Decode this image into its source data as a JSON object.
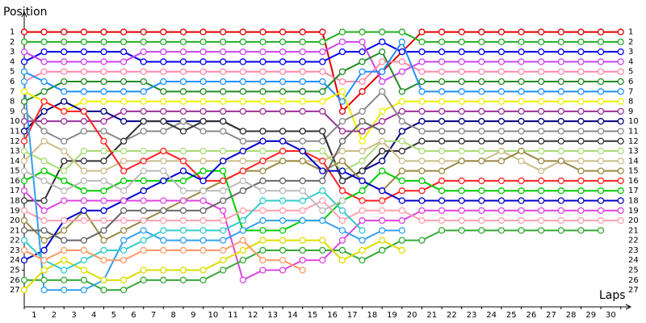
{
  "chart_data": {
    "type": "lapchart",
    "y_label": "Position",
    "x_label": "Laps",
    "x": [
      0,
      1,
      2,
      3,
      4,
      5,
      6,
      7,
      8,
      9,
      10,
      11,
      12,
      13,
      14,
      15,
      16,
      17,
      18,
      19,
      20,
      21,
      22,
      23,
      24,
      25,
      26,
      27,
      28,
      29,
      30
    ],
    "xlim": [
      0,
      30.5
    ],
    "ylim": [
      28.7,
      -1
    ],
    "yticks": [
      1,
      2,
      3,
      4,
      5,
      6,
      7,
      8,
      9,
      10,
      11,
      12,
      13,
      14,
      15,
      16,
      17,
      18,
      19,
      20,
      21,
      22,
      23,
      24,
      25,
      26,
      27
    ],
    "xticks": [
      {
        "value": 0.5,
        "label": "1"
      },
      {
        "value": 1.5,
        "label": "2"
      },
      {
        "value": 2.5,
        "label": "3"
      },
      {
        "value": 3.5,
        "label": "4"
      },
      {
        "value": 4.5,
        "label": "5"
      },
      {
        "value": 5.5,
        "label": "6"
      },
      {
        "value": 6.5,
        "label": "7"
      },
      {
        "value": 7.5,
        "label": "8"
      },
      {
        "value": 8.5,
        "label": "9"
      },
      {
        "value": 9.5,
        "label": "10"
      },
      {
        "value": 10.5,
        "label": "11"
      },
      {
        "value": 11.5,
        "label": "12"
      },
      {
        "value": 12.5,
        "label": "13"
      },
      {
        "value": 13.5,
        "label": "14"
      },
      {
        "value": 14.5,
        "label": "15"
      },
      {
        "value": 15.5,
        "label": "16"
      },
      {
        "value": 16.5,
        "label": "17"
      },
      {
        "value": 17.5,
        "label": "18"
      },
      {
        "value": 18.5,
        "label": "19"
      },
      {
        "value": 19.5,
        "label": "20"
      },
      {
        "value": 20.5,
        "label": "21"
      },
      {
        "value": 21.5,
        "label": "22"
      },
      {
        "value": 22.5,
        "label": "23"
      },
      {
        "value": 23.5,
        "label": "24"
      },
      {
        "value": 24.5,
        "label": "25"
      },
      {
        "value": 25.5,
        "label": "26"
      },
      {
        "value": 26.5,
        "label": "27"
      },
      {
        "value": 27.5,
        "label": "28"
      },
      {
        "value": 28.5,
        "label": "29"
      },
      {
        "value": 29.5,
        "label": "30"
      }
    ],
    "series": [
      {
        "color": "#e00000",
        "values": [
          1,
          1,
          1,
          1,
          1,
          1,
          1,
          1,
          1,
          1,
          1,
          1,
          1,
          1,
          1,
          1,
          9,
          7,
          5,
          3,
          1,
          1,
          1,
          1,
          1,
          1,
          1,
          1,
          1,
          1,
          1
        ]
      },
      {
        "color": "#22b022",
        "values": [
          2,
          2,
          2,
          2,
          2,
          2,
          2,
          2,
          2,
          2,
          2,
          2,
          2,
          2,
          2,
          2,
          1,
          1,
          1,
          1,
          2,
          2,
          2,
          2,
          2,
          2,
          2,
          2,
          2,
          2,
          2
        ]
      },
      {
        "color": "#0000ee",
        "values": [
          4,
          3,
          3,
          3,
          3,
          3,
          4,
          4,
          4,
          4,
          4,
          4,
          4,
          4,
          4,
          4,
          3,
          3,
          2,
          3,
          3,
          3,
          3,
          3,
          3,
          3,
          3,
          3,
          3,
          3,
          3
        ]
      },
      {
        "color": "#cc44ee",
        "values": [
          3,
          4,
          4,
          4,
          4,
          4,
          3,
          3,
          3,
          3,
          3,
          3,
          3,
          3,
          3,
          3,
          2,
          2,
          6,
          5,
          4,
          4,
          4,
          4,
          4,
          4,
          4,
          4,
          4,
          4,
          4
        ]
      },
      {
        "color": "#ff88aa",
        "values": [
          6,
          5,
          5,
          5,
          5,
          5,
          5,
          5,
          5,
          5,
          5,
          5,
          5,
          5,
          5,
          5,
          6,
          6,
          4,
          4,
          5,
          5,
          5,
          5,
          5,
          5,
          5,
          5,
          5,
          5,
          5
        ]
      },
      {
        "color": "#228b22",
        "values": [
          8,
          7,
          6,
          6,
          6,
          6,
          6,
          7,
          7,
          7,
          7,
          7,
          7,
          7,
          7,
          7,
          5,
          4,
          3,
          7,
          6,
          6,
          6,
          6,
          6,
          6,
          6,
          6,
          6,
          6,
          6
        ]
      },
      {
        "color": "#1e90ff",
        "values": [
          5,
          6,
          7,
          7,
          7,
          7,
          7,
          6,
          6,
          6,
          6,
          6,
          6,
          6,
          6,
          6,
          8,
          5,
          5,
          2,
          7,
          7,
          7,
          7,
          7,
          7,
          7,
          7,
          7,
          7,
          7
        ]
      },
      {
        "color": "#eeee00",
        "values": [
          7,
          8,
          9,
          8,
          8,
          8,
          8,
          8,
          8,
          8,
          8,
          8,
          8,
          8,
          8,
          8,
          7,
          12,
          9,
          8,
          8,
          8,
          8,
          8,
          8,
          8,
          8,
          8,
          8,
          8,
          8
        ]
      },
      {
        "color": "#993399",
        "values": [
          10,
          10,
          10,
          10,
          10,
          9,
          9,
          9,
          9,
          9,
          9,
          9,
          9,
          9,
          9,
          9,
          11,
          11,
          10,
          9,
          9,
          9,
          9,
          9,
          9,
          9,
          9,
          9,
          9,
          9,
          9
        ]
      },
      {
        "color": "#000080",
        "values": [
          11,
          9,
          8,
          9,
          9,
          10,
          10,
          10,
          10,
          10,
          10,
          11,
          11,
          11,
          11,
          11,
          16,
          15,
          14,
          11,
          10,
          10,
          10,
          10,
          10,
          10,
          10,
          10,
          10,
          10,
          10
        ]
      },
      {
        "color": "#888888",
        "values": [
          9,
          11,
          12,
          11,
          11,
          12,
          11,
          11,
          10,
          11,
          11,
          12,
          12,
          12,
          12,
          12,
          10,
          9,
          7,
          10,
          11,
          11,
          11,
          11,
          11,
          11,
          11,
          11,
          11,
          11,
          11
        ]
      },
      {
        "color": "#333333",
        "values": [
          18,
          18,
          14,
          14,
          14,
          12,
          10,
          10,
          11,
          10,
          10,
          11,
          11,
          11,
          11,
          11,
          16,
          15,
          13,
          13,
          12,
          12,
          12,
          12,
          12,
          12,
          12,
          12,
          12,
          12,
          12
        ]
      },
      {
        "color": "#aadd77",
        "values": [
          13,
          14,
          15,
          13,
          13,
          13,
          13,
          13,
          13,
          13,
          13,
          13,
          13,
          13,
          13,
          13,
          15,
          14,
          12,
          12,
          13,
          13,
          13,
          13,
          13,
          13,
          13,
          13,
          13,
          13,
          13
        ]
      },
      {
        "color": "#ccbb88",
        "values": [
          14,
          12,
          13,
          15,
          15,
          14,
          14,
          14,
          14,
          14,
          14,
          14,
          14,
          14,
          14,
          14,
          13,
          13,
          12,
          14,
          14,
          14,
          14,
          14,
          13,
          14,
          15,
          14,
          14,
          14,
          14
        ]
      },
      {
        "color": "#998844",
        "values": [
          20,
          22,
          21,
          19,
          22,
          21,
          20,
          19,
          18,
          17,
          16,
          15,
          15,
          14,
          14,
          15,
          14,
          16,
          17,
          15,
          15,
          15,
          14,
          14,
          14,
          13,
          14,
          14,
          15,
          15,
          15
        ]
      },
      {
        "color": "#ff2020",
        "values": [
          12,
          8,
          9,
          9,
          12,
          15,
          14,
          13,
          14,
          16,
          16,
          15,
          14,
          13,
          13,
          14,
          17,
          18,
          18,
          17,
          17,
          16,
          16,
          16,
          16,
          16,
          16,
          16,
          16,
          16,
          16
        ]
      },
      {
        "color": "#00cc00",
        "values": [
          16,
          15,
          16,
          17,
          17,
          16,
          16,
          16,
          16,
          15,
          15,
          21,
          21,
          21,
          20,
          20,
          18,
          17,
          15,
          16,
          16,
          17,
          17,
          17,
          17,
          17,
          17,
          17,
          17,
          17,
          17
        ]
      },
      {
        "color": "#0000cc",
        "values": [
          24,
          23,
          20,
          19,
          19,
          18,
          17,
          16,
          15,
          16,
          14,
          13,
          12,
          12,
          13,
          15,
          15,
          16,
          17,
          18,
          18,
          18,
          18,
          18,
          18,
          18,
          18,
          18,
          18,
          18,
          18
        ]
      },
      {
        "color": "#dd44dd",
        "values": [
          17,
          19,
          18,
          18,
          18,
          18,
          18,
          18,
          18,
          18,
          19,
          26,
          25,
          25,
          24,
          24,
          22,
          20,
          20,
          20,
          19,
          19,
          19,
          19,
          19,
          19,
          19,
          19,
          19,
          19,
          19
        ]
      },
      {
        "color": "#ffa0b0",
        "values": [
          19,
          20,
          20,
          20,
          20,
          20,
          20,
          20,
          20,
          20,
          20,
          19,
          19,
          19,
          19,
          18,
          20,
          19,
          19,
          19,
          20,
          20,
          20,
          20,
          20,
          20,
          20,
          20,
          20,
          20,
          20
        ]
      },
      {
        "color": "#33aa33",
        "values": [
          26,
          26,
          26,
          26,
          27,
          27,
          26,
          26,
          26,
          26,
          25,
          24,
          23,
          23,
          23,
          23,
          23,
          24,
          23,
          22,
          22,
          21,
          21,
          21,
          21,
          21,
          21,
          21,
          21,
          21,
          null
        ]
      },
      {
        "color": "#33a0ee",
        "values": [
          6,
          27,
          27,
          27,
          26,
          22,
          21,
          22,
          22,
          22,
          22,
          21,
          20,
          20,
          20,
          20,
          21,
          22,
          21,
          21,
          null,
          null,
          null,
          null,
          null,
          null,
          null,
          null,
          null,
          null,
          null
        ]
      },
      {
        "color": "#dddd00",
        "values": [
          27,
          25,
          24,
          25,
          26,
          26,
          25,
          25,
          25,
          25,
          24,
          23,
          22,
          22,
          22,
          22,
          24,
          23,
          22,
          23,
          null,
          null,
          null,
          null,
          null,
          null,
          null,
          null,
          null,
          null,
          null
        ]
      },
      {
        "color": "#666666",
        "values": [
          21,
          21,
          22,
          22,
          21,
          19,
          19,
          19,
          19,
          19,
          18,
          17,
          16,
          16,
          16,
          16,
          12,
          10,
          11,
          null,
          null,
          null,
          null,
          null,
          null,
          null,
          null,
          null,
          null,
          null,
          null
        ]
      },
      {
        "color": "#33cccc",
        "values": [
          22,
          24,
          25,
          24,
          23,
          23,
          22,
          21,
          21,
          21,
          21,
          20,
          18,
          18,
          18,
          17,
          19,
          21,
          null,
          null,
          null,
          null,
          null,
          null,
          null,
          null,
          null,
          null,
          null,
          null,
          null
        ]
      },
      {
        "color": "#bbbbbb",
        "values": [
          15,
          16,
          17,
          16,
          16,
          17,
          15,
          15,
          17,
          17,
          17,
          16,
          17,
          17,
          17,
          19,
          18,
          null,
          null,
          null,
          null,
          null,
          null,
          null,
          null,
          null,
          null,
          null,
          null,
          null,
          null
        ]
      },
      {
        "color": "#ff9966",
        "values": [
          23,
          24,
          23,
          23,
          24,
          24,
          23,
          23,
          23,
          23,
          23,
          22,
          24,
          24,
          25,
          null,
          null,
          null,
          null,
          null,
          null,
          null,
          null,
          null,
          null,
          null,
          null,
          null,
          null,
          null,
          null
        ]
      }
    ]
  }
}
